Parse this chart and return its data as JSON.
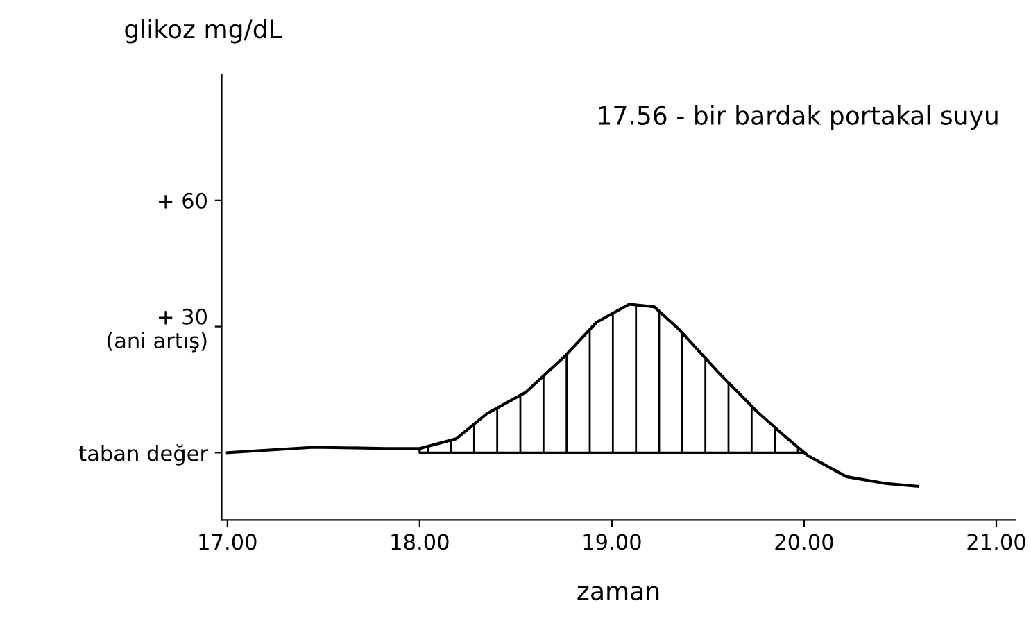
{
  "chart_data": {
    "type": "line",
    "ylabel": "glikoz mg/dL",
    "xlabel": "zaman",
    "annotations": [
      "17.56 - bir bardak portakal suyu"
    ],
    "x": [
      17.0,
      17.45,
      17.82,
      18.0,
      18.19,
      18.35,
      18.55,
      18.75,
      18.92,
      19.09,
      19.22,
      19.35,
      19.55,
      19.75,
      19.89,
      20.02,
      20.22,
      20.42,
      20.59
    ],
    "series": [
      {
        "color": "#000000",
        "values": [
          0,
          1.3,
          1,
          1,
          3.3,
          9.3,
          14.3,
          22.7,
          31,
          35.3,
          34.7,
          29.3,
          19.3,
          10,
          4.3,
          -0.7,
          -5.7,
          -7.3,
          -8
        ]
      },
      {
        "type": "area",
        "color": "#000000",
        "x": [
          18.0,
          18.19,
          18.35,
          18.55,
          18.75,
          18.92,
          19.09,
          19.22,
          19.35,
          19.55,
          19.75,
          19.89,
          20.0
        ],
        "values": [
          1,
          3.3,
          9.3,
          14.3,
          22.7,
          31,
          35.3,
          34.7,
          29.3,
          19.3,
          10,
          4.3,
          0
        ]
      }
    ],
    "xlim": [
      16.97,
      21.1
    ],
    "xticks": [
      {
        "value": 17,
        "label": "17.00"
      },
      {
        "value": 18,
        "label": "18.00"
      },
      {
        "value": 19,
        "label": "19.00"
      },
      {
        "value": 20,
        "label": "20.00"
      },
      {
        "value": 21,
        "label": "21.00"
      }
    ],
    "ylim": [
      -16,
      90
    ],
    "yticks": [
      {
        "value": 0,
        "label": "taban değer"
      },
      {
        "value": 30,
        "label": "+ 30\n(ani artış)"
      },
      {
        "value": 60,
        "label": "+ 60"
      }
    ],
    "grid": false,
    "legend": false,
    "marker": "none",
    "line_style": "solid"
  }
}
